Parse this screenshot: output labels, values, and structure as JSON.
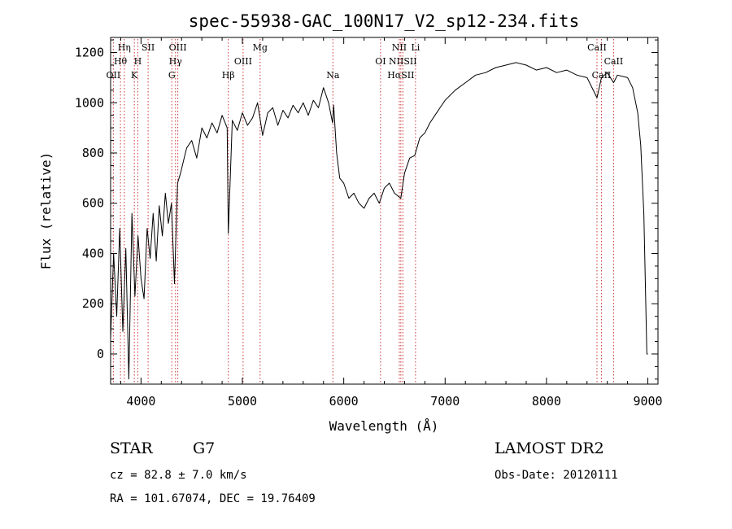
{
  "chart_data": {
    "type": "line",
    "title": "spec-55938-GAC_100N17_V2_sp12-234.fits",
    "xlabel": "Wavelength (Å)",
    "ylabel": "Flux (relative)",
    "xlim": [
      3700,
      9100
    ],
    "ylim": [
      -120,
      1260
    ],
    "xticks": [
      4000,
      5000,
      6000,
      7000,
      8000,
      9000
    ],
    "yticks": [
      0,
      200,
      400,
      600,
      800,
      1000,
      1200
    ],
    "grid": false,
    "series": [
      {
        "x": [
          3700,
          3730,
          3760,
          3790,
          3820,
          3850,
          3880,
          3910,
          3940,
          3970,
          4000,
          4030,
          4060,
          4090,
          4120,
          4150,
          4180,
          4210,
          4240,
          4270,
          4300,
          4330,
          4360,
          4390,
          4420,
          4450,
          4500,
          4550,
          4600,
          4650,
          4700,
          4750,
          4800,
          4850,
          4861,
          4900,
          4950,
          5000,
          5050,
          5100,
          5150,
          5200,
          5250,
          5300,
          5350,
          5400,
          5450,
          5500,
          5550,
          5600,
          5650,
          5700,
          5750,
          5800,
          5850,
          5890,
          5900,
          5930,
          5960,
          6000,
          6050,
          6100,
          6150,
          6200,
          6250,
          6300,
          6350,
          6400,
          6450,
          6500,
          6563,
          6600,
          6650,
          6700,
          6750,
          6800,
          6850,
          6900,
          6950,
          7000,
          7100,
          7200,
          7300,
          7400,
          7500,
          7600,
          7700,
          7800,
          7900,
          8000,
          8100,
          8200,
          8300,
          8400,
          8498,
          8542,
          8600,
          8662,
          8700,
          8800,
          8850,
          8900,
          8930,
          8960,
          8980,
          8990,
          9000
        ],
        "y": [
          60,
          400,
          150,
          500,
          90,
          420,
          -100,
          560,
          230,
          470,
          300,
          220,
          500,
          380,
          560,
          370,
          590,
          470,
          640,
          520,
          600,
          280,
          680,
          720,
          770,
          820,
          850,
          780,
          900,
          860,
          920,
          880,
          950,
          900,
          480,
          930,
          890,
          960,
          910,
          940,
          1000,
          870,
          960,
          980,
          910,
          970,
          940,
          990,
          960,
          1000,
          950,
          1010,
          980,
          1060,
          1000,
          920,
          990,
          800,
          700,
          680,
          620,
          640,
          600,
          580,
          620,
          640,
          600,
          660,
          680,
          640,
          620,
          720,
          780,
          790,
          860,
          880,
          920,
          950,
          980,
          1010,
          1050,
          1080,
          1110,
          1120,
          1140,
          1150,
          1160,
          1150,
          1130,
          1140,
          1120,
          1130,
          1110,
          1100,
          1020,
          1100,
          1120,
          1080,
          1110,
          1100,
          1060,
          960,
          830,
          560,
          200,
          0,
          0
        ]
      }
    ],
    "lines": [
      {
        "label": "Hη",
        "x": 3835,
        "row": 0
      },
      {
        "label": "SII",
        "x": 4070,
        "row": 0
      },
      {
        "label": "OIII",
        "x": 4363,
        "row": 0
      },
      {
        "label": "Mg",
        "x": 5175,
        "row": 0
      },
      {
        "label": "NII",
        "x": 6548,
        "row": 0
      },
      {
        "label": "Li",
        "x": 6708,
        "row": 0
      },
      {
        "label": "CaII",
        "x": 8498,
        "row": 0
      },
      {
        "label": "Hθ",
        "x": 3797,
        "row": 1
      },
      {
        "label": "H",
        "x": 3968,
        "row": 1
      },
      {
        "label": "Hγ",
        "x": 4340,
        "row": 1
      },
      {
        "label": "OIII",
        "x": 5007,
        "row": 1
      },
      {
        "label": "OI",
        "x": 6363,
        "row": 1
      },
      {
        "label": "NIISII",
        "x": 6583,
        "row": 1
      },
      {
        "label": "CaII",
        "x": 8662,
        "row": 1
      },
      {
        "label": "OII",
        "x": 3727,
        "row": 2
      },
      {
        "label": "K",
        "x": 3934,
        "row": 2
      },
      {
        "label": "G",
        "x": 4304,
        "row": 2
      },
      {
        "label": "Hβ",
        "x": 4861,
        "row": 2
      },
      {
        "label": "Na",
        "x": 5893,
        "row": 2
      },
      {
        "label": "HαSII",
        "x": 6563,
        "row": 2
      },
      {
        "label": "CaII",
        "x": 8542,
        "row": 2
      }
    ],
    "line_color": "#000000",
    "marker_color": "#cc3333"
  },
  "info": {
    "class": "STAR",
    "subclass": "G7",
    "survey": "LAMOST DR2",
    "cz": "cz = 82.8 ± 7.0 km/s",
    "obs_date": "Obs-Date: 20120111",
    "coords": "RA = 101.67074, DEC =  19.76409"
  }
}
